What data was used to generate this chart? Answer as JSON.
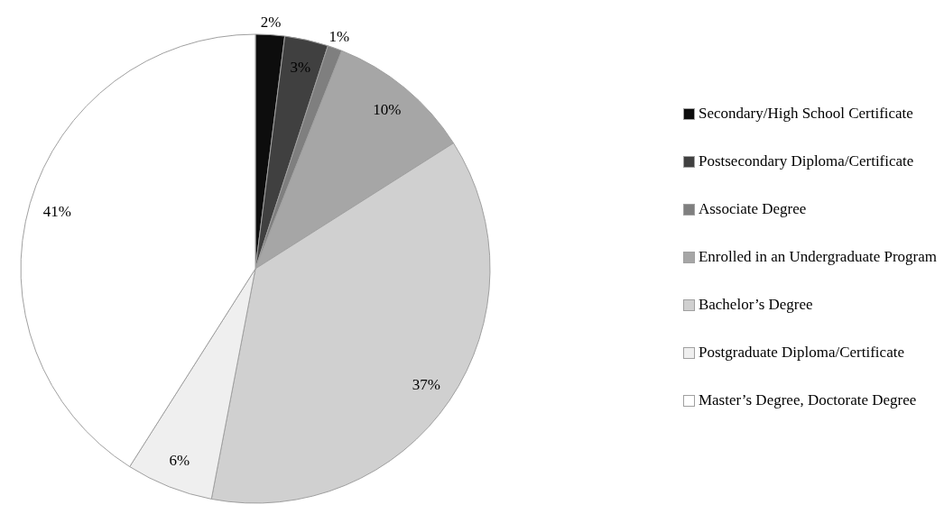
{
  "chart_data": {
    "type": "pie",
    "categories": [
      "Secondary/High School Certificate",
      "Postsecondary Diploma/Certificate",
      "Associate Degree",
      "Enrolled in an Undergraduate Program",
      "Bachelor’s Degree",
      "Postgraduate Diploma/Certificate",
      "Master’s Degree, Doctorate Degree"
    ],
    "values": [
      2,
      3,
      1,
      10,
      37,
      6,
      41
    ],
    "colors": [
      "#0d0d0d",
      "#404040",
      "#7f7f7f",
      "#a6a6a6",
      "#d0d0d0",
      "#efefef",
      "#ffffff"
    ],
    "value_labels": [
      "2%",
      "3%",
      "1%",
      "10%",
      "37%",
      "6%",
      "41%"
    ],
    "legend": "right"
  }
}
